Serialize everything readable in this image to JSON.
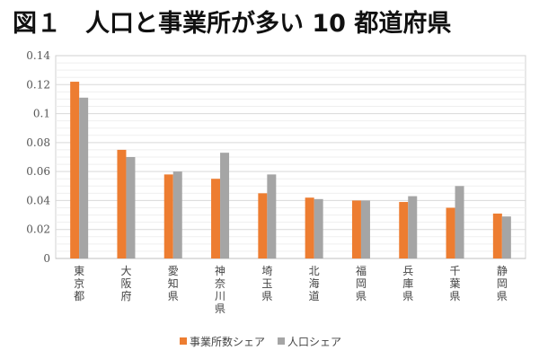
{
  "chart_data": {
    "type": "bar",
    "title": "図１　人口と事業所が多い 10 都道府県",
    "categories": [
      "東京都",
      "大阪府",
      "愛知県",
      "神奈川県",
      "埼玉県",
      "北海道",
      "福岡県",
      "兵庫県",
      "千葉県",
      "静岡県"
    ],
    "series": [
      {
        "name": "事業所数シェア",
        "color": "#ED7D31",
        "values": [
          0.122,
          0.075,
          0.058,
          0.055,
          0.045,
          0.042,
          0.04,
          0.039,
          0.035,
          0.031
        ]
      },
      {
        "name": "人口シェア",
        "color": "#A5A5A5",
        "values": [
          0.111,
          0.07,
          0.06,
          0.073,
          0.058,
          0.041,
          0.04,
          0.043,
          0.05,
          0.029
        ]
      }
    ],
    "yticks": [
      "0",
      "0.02",
      "0.04",
      "0.06",
      "0.08",
      "0.1",
      "0.12",
      "0.14"
    ],
    "ylim": [
      0,
      0.14
    ],
    "grid": true,
    "legend": "bottom",
    "xlabel": "",
    "ylabel": ""
  }
}
